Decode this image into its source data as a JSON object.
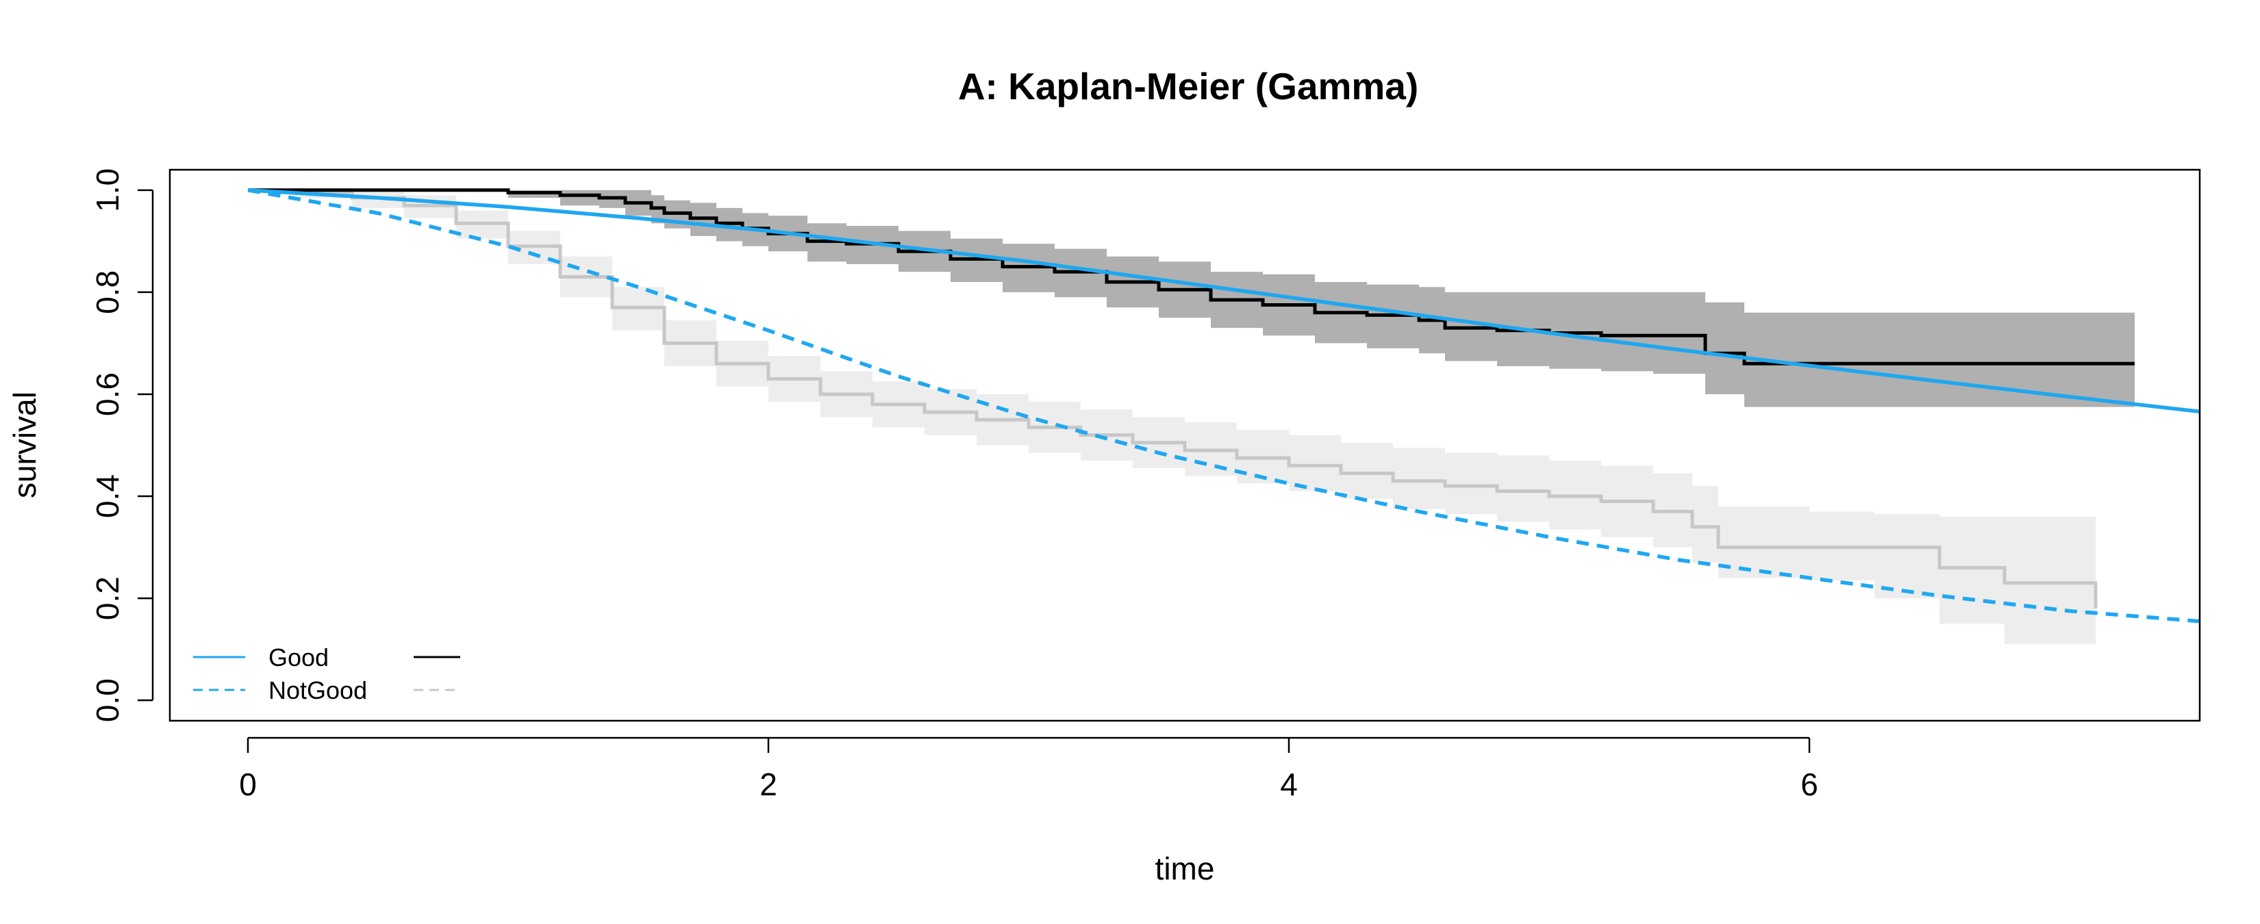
{
  "chart_data": {
    "type": "line",
    "title": "A: Kaplan-Meier (Gamma)",
    "xlabel": "time",
    "ylabel": "survival",
    "xlim": [
      -0.3,
      7.5
    ],
    "ylim": [
      -0.04,
      1.04
    ],
    "x_ticks": [
      0,
      2,
      4,
      6
    ],
    "x_tick_labels": [
      "0",
      "2",
      "4",
      "6"
    ],
    "y_ticks": [
      0.0,
      0.2,
      0.4,
      0.6,
      0.8,
      1.0
    ],
    "y_tick_labels": [
      "0.0",
      "0.2",
      "0.4",
      "0.6",
      "0.8",
      "1.0"
    ],
    "grid": false,
    "legend_position": "bottom-left",
    "legend": [
      {
        "label": "Good",
        "fitted_line": "solid",
        "km_line": "solid"
      },
      {
        "label": "NotGood",
        "fitted_line": "dashed",
        "km_line": "dashed"
      }
    ],
    "colors": {
      "fitted": "#1fa7f0",
      "km_good": "#000000",
      "km_notgood": "#c7c7c7",
      "ci_good": "#b0b0b0",
      "ci_notgood": "#ededed"
    },
    "series": [
      {
        "name": "Good",
        "kind": "km",
        "x": [
          0,
          0.2,
          0.6,
          1.0,
          1.2,
          1.35,
          1.45,
          1.55,
          1.6,
          1.7,
          1.8,
          1.9,
          2.0,
          2.15,
          2.3,
          2.5,
          2.7,
          2.9,
          3.1,
          3.3,
          3.5,
          3.7,
          3.9,
          4.1,
          4.3,
          4.5,
          4.6,
          4.8,
          5.0,
          5.2,
          5.4,
          5.6,
          5.75,
          7.25
        ],
        "y": [
          1.0,
          1.0,
          1.0,
          0.995,
          0.99,
          0.985,
          0.975,
          0.965,
          0.955,
          0.945,
          0.935,
          0.925,
          0.915,
          0.9,
          0.895,
          0.88,
          0.865,
          0.85,
          0.84,
          0.82,
          0.805,
          0.785,
          0.775,
          0.76,
          0.755,
          0.745,
          0.73,
          0.725,
          0.72,
          0.715,
          0.715,
          0.68,
          0.66,
          0.66
        ],
        "ci_upper": [
          1.0,
          1.0,
          1.0,
          1.0,
          1.0,
          1.0,
          1.0,
          0.99,
          0.98,
          0.975,
          0.965,
          0.955,
          0.95,
          0.935,
          0.93,
          0.92,
          0.905,
          0.895,
          0.885,
          0.87,
          0.86,
          0.84,
          0.835,
          0.82,
          0.815,
          0.81,
          0.8,
          0.8,
          0.8,
          0.8,
          0.8,
          0.78,
          0.76,
          0.76
        ],
        "ci_lower": [
          1.0,
          1.0,
          1.0,
          0.985,
          0.97,
          0.965,
          0.95,
          0.935,
          0.925,
          0.91,
          0.9,
          0.89,
          0.88,
          0.86,
          0.855,
          0.84,
          0.82,
          0.8,
          0.79,
          0.77,
          0.75,
          0.73,
          0.715,
          0.7,
          0.69,
          0.68,
          0.665,
          0.655,
          0.65,
          0.645,
          0.64,
          0.6,
          0.575,
          0.575
        ]
      },
      {
        "name": "NotGood",
        "kind": "km",
        "x": [
          0,
          0.2,
          0.4,
          0.6,
          0.8,
          1.0,
          1.2,
          1.4,
          1.6,
          1.8,
          2.0,
          2.2,
          2.4,
          2.6,
          2.8,
          3.0,
          3.2,
          3.4,
          3.6,
          3.8,
          4.0,
          4.2,
          4.4,
          4.6,
          4.8,
          5.0,
          5.2,
          5.4,
          5.55,
          5.65,
          6.0,
          6.25,
          6.5,
          6.75,
          7.1
        ],
        "y": [
          1.0,
          0.995,
          0.985,
          0.97,
          0.935,
          0.89,
          0.83,
          0.77,
          0.7,
          0.66,
          0.63,
          0.6,
          0.58,
          0.565,
          0.55,
          0.535,
          0.52,
          0.505,
          0.49,
          0.475,
          0.46,
          0.445,
          0.43,
          0.42,
          0.41,
          0.4,
          0.39,
          0.37,
          0.34,
          0.3,
          0.3,
          0.3,
          0.26,
          0.23,
          0.18
        ],
        "ci_upper": [
          1.0,
          1.0,
          1.0,
          0.99,
          0.96,
          0.92,
          0.87,
          0.81,
          0.745,
          0.705,
          0.675,
          0.645,
          0.625,
          0.61,
          0.6,
          0.585,
          0.57,
          0.555,
          0.545,
          0.53,
          0.52,
          0.505,
          0.495,
          0.485,
          0.48,
          0.47,
          0.46,
          0.445,
          0.42,
          0.38,
          0.37,
          0.365,
          0.36,
          0.36,
          0.36
        ],
        "ci_lower": [
          1.0,
          0.985,
          0.965,
          0.945,
          0.905,
          0.855,
          0.79,
          0.725,
          0.655,
          0.615,
          0.585,
          0.555,
          0.535,
          0.52,
          0.5,
          0.485,
          0.47,
          0.455,
          0.44,
          0.425,
          0.41,
          0.395,
          0.375,
          0.365,
          0.35,
          0.335,
          0.32,
          0.3,
          0.27,
          0.24,
          0.235,
          0.2,
          0.15,
          0.11,
          0.09
        ]
      },
      {
        "name": "Good fitted",
        "kind": "fitted",
        "x": [
          0,
          0.5,
          1.0,
          1.5,
          2.0,
          2.5,
          3.0,
          3.5,
          4.0,
          4.5,
          5.0,
          5.5,
          6.0,
          6.5,
          7.0,
          7.5
        ],
        "y": [
          1.0,
          0.985,
          0.967,
          0.945,
          0.92,
          0.89,
          0.86,
          0.825,
          0.79,
          0.755,
          0.72,
          0.687,
          0.656,
          0.625,
          0.595,
          0.566
        ]
      },
      {
        "name": "NotGood fitted",
        "kind": "fitted",
        "x": [
          0,
          0.5,
          1.0,
          1.5,
          2.0,
          2.5,
          3.0,
          3.5,
          4.0,
          4.5,
          5.0,
          5.5,
          6.0,
          6.5,
          7.0,
          7.5
        ],
        "y": [
          1.0,
          0.955,
          0.89,
          0.81,
          0.725,
          0.635,
          0.555,
          0.485,
          0.425,
          0.37,
          0.32,
          0.275,
          0.24,
          0.205,
          0.175,
          0.155
        ]
      }
    ]
  }
}
